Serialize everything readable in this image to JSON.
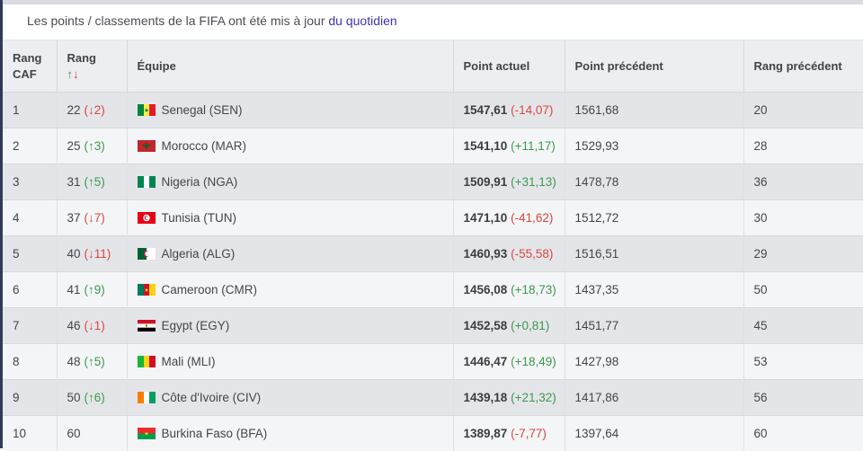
{
  "notice": {
    "text": "Les points / classements de la FIFA ont été mis à jour ",
    "link": "du quotidien"
  },
  "headers": {
    "caf_rank_line1": "Rang",
    "caf_rank_line2": "CAF",
    "rank_line1": "Rang",
    "rank_up": "↑",
    "rank_down": "↓",
    "team": "Équipe",
    "current_points": "Point actuel",
    "previous_points": "Point précédent",
    "previous_rank": "Rang précédent"
  },
  "rows": [
    {
      "caf": "1",
      "rank": "22",
      "rank_change": "(↓2)",
      "dir": "down",
      "flag": "sen",
      "team": "Senegal (SEN)",
      "points": "1547,61",
      "points_change": "(-14,07)",
      "pdir": "down",
      "prev_points": "1561,68",
      "prev_rank": "20"
    },
    {
      "caf": "2",
      "rank": "25",
      "rank_change": "(↑3)",
      "dir": "up",
      "flag": "mar",
      "team": "Morocco (MAR)",
      "points": "1541,10",
      "points_change": "(+11,17)",
      "pdir": "up",
      "prev_points": "1529,93",
      "prev_rank": "28"
    },
    {
      "caf": "3",
      "rank": "31",
      "rank_change": "(↑5)",
      "dir": "up",
      "flag": "nga",
      "team": "Nigeria (NGA)",
      "points": "1509,91",
      "points_change": "(+31,13)",
      "pdir": "up",
      "prev_points": "1478,78",
      "prev_rank": "36"
    },
    {
      "caf": "4",
      "rank": "37",
      "rank_change": "(↓7)",
      "dir": "down",
      "flag": "tun",
      "team": "Tunisia (TUN)",
      "points": "1471,10",
      "points_change": "(-41,62)",
      "pdir": "down",
      "prev_points": "1512,72",
      "prev_rank": "30"
    },
    {
      "caf": "5",
      "rank": "40",
      "rank_change": "(↓11)",
      "dir": "down",
      "flag": "alg",
      "team": "Algeria (ALG)",
      "points": "1460,93",
      "points_change": "(-55,58)",
      "pdir": "down",
      "prev_points": "1516,51",
      "prev_rank": "29"
    },
    {
      "caf": "6",
      "rank": "41",
      "rank_change": "(↑9)",
      "dir": "up",
      "flag": "cmr",
      "team": "Cameroon (CMR)",
      "points": "1456,08",
      "points_change": "(+18,73)",
      "pdir": "up",
      "prev_points": "1437,35",
      "prev_rank": "50"
    },
    {
      "caf": "7",
      "rank": "46",
      "rank_change": "(↓1)",
      "dir": "down",
      "flag": "egy",
      "team": "Egypt (EGY)",
      "points": "1452,58",
      "points_change": "(+0,81)",
      "pdir": "up",
      "prev_points": "1451,77",
      "prev_rank": "45"
    },
    {
      "caf": "8",
      "rank": "48",
      "rank_change": "(↑5)",
      "dir": "up",
      "flag": "mli",
      "team": "Mali (MLI)",
      "points": "1446,47",
      "points_change": "(+18,49)",
      "pdir": "up",
      "prev_points": "1427,98",
      "prev_rank": "53"
    },
    {
      "caf": "9",
      "rank": "50",
      "rank_change": "(↑6)",
      "dir": "up",
      "flag": "civ",
      "team": "Côte d'Ivoire (CIV)",
      "points": "1439,18",
      "points_change": "(+21,32)",
      "pdir": "up",
      "prev_points": "1417,86",
      "prev_rank": "56"
    },
    {
      "caf": "10",
      "rank": "60",
      "rank_change": "",
      "dir": "none",
      "flag": "bfa",
      "team": "Burkina Faso (BFA)",
      "points": "1389,87",
      "points_change": "(-7,77)",
      "pdir": "down",
      "prev_points": "1397,64",
      "prev_rank": "60"
    }
  ],
  "colors": {
    "up": "#3a9a4f",
    "down": "#d9473f",
    "link": "#3b36b5",
    "header_bg": "#eceef1"
  }
}
